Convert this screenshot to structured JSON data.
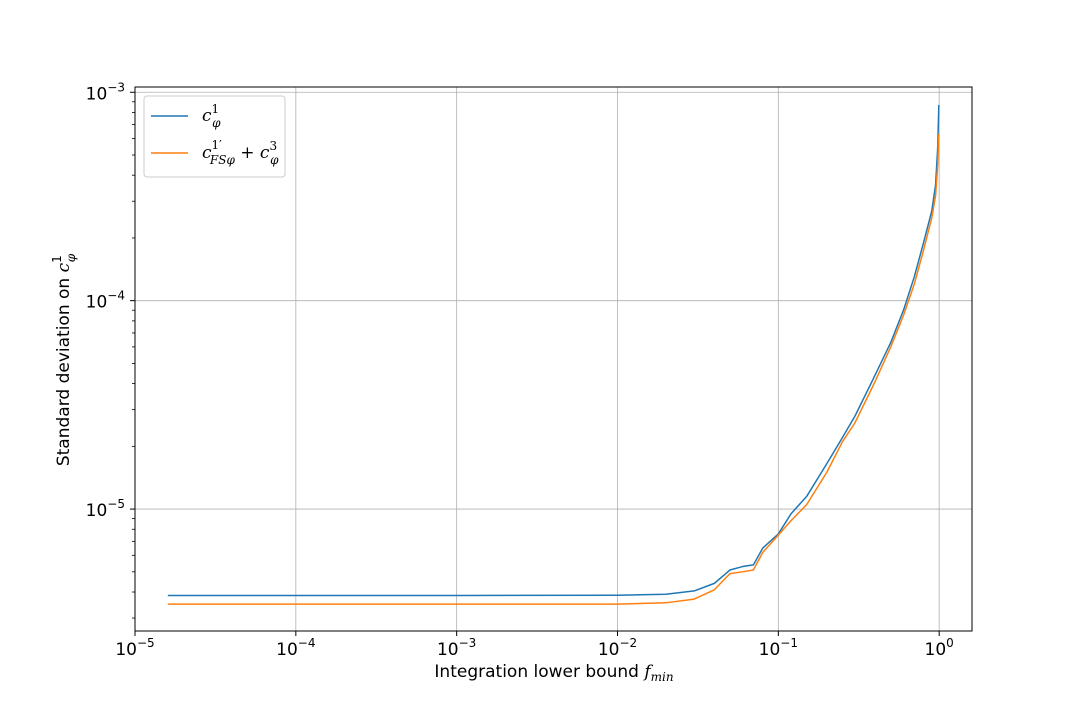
{
  "chart_data": {
    "type": "line",
    "xscale": "log",
    "yscale": "log",
    "xlim": [
      1e-05,
      1.6
    ],
    "ylim": [
      2.6e-06,
      0.00106
    ],
    "grid": true,
    "legend_position": "top-left",
    "xlabel": {
      "text": "Integration lower bound ",
      "math": "f",
      "math_sub": "min"
    },
    "ylabel": {
      "text": "Standard deviation on ",
      "math": "c",
      "math_sup": "1",
      "math_sub": "φ"
    },
    "x_ticks": [
      {
        "value": 1e-05,
        "base": "10",
        "exp": "−5"
      },
      {
        "value": 0.0001,
        "base": "10",
        "exp": "−4"
      },
      {
        "value": 0.001,
        "base": "10",
        "exp": "−3"
      },
      {
        "value": 0.01,
        "base": "10",
        "exp": "−2"
      },
      {
        "value": 0.1,
        "base": "10",
        "exp": "−1"
      },
      {
        "value": 1,
        "base": "10",
        "exp": "0"
      }
    ],
    "y_ticks": [
      {
        "value": 1e-05,
        "base": "10",
        "exp": "−5"
      },
      {
        "value": 0.0001,
        "base": "10",
        "exp": "−4"
      },
      {
        "value": 0.001,
        "base": "10",
        "exp": "−3"
      }
    ],
    "series": [
      {
        "name": "c_φ^1",
        "color": "#1f77b4",
        "points": [
          [
            1.6e-05,
            3.85e-06
          ],
          [
            0.0001,
            3.85e-06
          ],
          [
            0.001,
            3.85e-06
          ],
          [
            0.01,
            3.86e-06
          ],
          [
            0.02,
            3.9e-06
          ],
          [
            0.03,
            4.05e-06
          ],
          [
            0.04,
            4.4e-06
          ],
          [
            0.05,
            5.1e-06
          ],
          [
            0.06,
            5.3e-06
          ],
          [
            0.07,
            5.4e-06
          ],
          [
            0.08,
            6.5e-06
          ],
          [
            0.1,
            7.6e-06
          ],
          [
            0.12,
            9.5e-06
          ],
          [
            0.15,
            1.15e-05
          ],
          [
            0.2,
            1.65e-05
          ],
          [
            0.25,
            2.2e-05
          ],
          [
            0.3,
            2.8e-05
          ],
          [
            0.4,
            4.4e-05
          ],
          [
            0.5,
            6.3e-05
          ],
          [
            0.6,
            9e-05
          ],
          [
            0.7,
            0.00013
          ],
          [
            0.8,
            0.00019
          ],
          [
            0.9,
            0.00027
          ],
          [
            0.95,
            0.00036
          ],
          [
            0.98,
            0.00055
          ],
          [
            0.995,
            0.00087
          ]
        ]
      },
      {
        "name": "c_FSφ^1' + c_φ^3",
        "color": "#ff7f0e",
        "points": [
          [
            1.6e-05,
            3.5e-06
          ],
          [
            0.0001,
            3.5e-06
          ],
          [
            0.001,
            3.5e-06
          ],
          [
            0.01,
            3.5e-06
          ],
          [
            0.02,
            3.55e-06
          ],
          [
            0.03,
            3.7e-06
          ],
          [
            0.04,
            4.1e-06
          ],
          [
            0.05,
            4.9e-06
          ],
          [
            0.06,
            5e-06
          ],
          [
            0.07,
            5.1e-06
          ],
          [
            0.08,
            6.2e-06
          ],
          [
            0.1,
            7.5e-06
          ],
          [
            0.12,
            8.8e-06
          ],
          [
            0.15,
            1.05e-05
          ],
          [
            0.2,
            1.5e-05
          ],
          [
            0.25,
            2.1e-05
          ],
          [
            0.3,
            2.6e-05
          ],
          [
            0.4,
            4.1e-05
          ],
          [
            0.5,
            6e-05
          ],
          [
            0.6,
            8.5e-05
          ],
          [
            0.7,
            0.00012
          ],
          [
            0.8,
            0.000175
          ],
          [
            0.9,
            0.00025
          ],
          [
            0.95,
            0.00032
          ],
          [
            0.98,
            0.00045
          ],
          [
            0.995,
            0.00063
          ]
        ]
      }
    ],
    "legend": {
      "entry1": {
        "base": "c",
        "sup": "1",
        "sub": "φ"
      },
      "entry2": {
        "base": "c",
        "sup": "1′",
        "sub": "FSφ",
        "op": " + ",
        "base2": "c",
        "sup2": "3",
        "sub2": "φ"
      }
    }
  }
}
